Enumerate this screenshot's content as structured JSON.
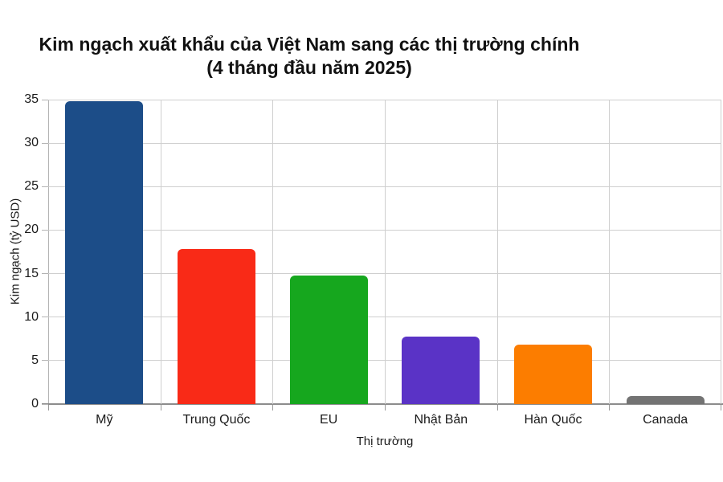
{
  "chart_data": {
    "type": "bar",
    "title": "Kim ngạch xuất khẩu của Việt Nam sang các thị trường chính",
    "subtitle": "(4 tháng đầu năm 2025)",
    "xlabel": "Thị trường",
    "ylabel": "Kim ngạch (tỷ USD)",
    "categories": [
      "Mỹ",
      "Trung Quốc",
      "EU",
      "Nhật Bản",
      "Hàn Quốc",
      "Canada"
    ],
    "values": [
      34.8,
      17.8,
      14.8,
      7.8,
      6.8,
      0.9
    ],
    "bar_colors": [
      "#1c4d88",
      "#f92a17",
      "#16a71e",
      "#5a33c6",
      "#fc7d00",
      "#737373"
    ],
    "ylim": [
      0,
      35
    ],
    "yticks": [
      0,
      5,
      10,
      15,
      20,
      25,
      30,
      35
    ],
    "grid": true,
    "legend": false
  },
  "colors": {
    "background": "#ffffff",
    "gridline": "#cfcfcf",
    "axis_line": "#8c8c8c",
    "text": "#1a1a1a"
  }
}
